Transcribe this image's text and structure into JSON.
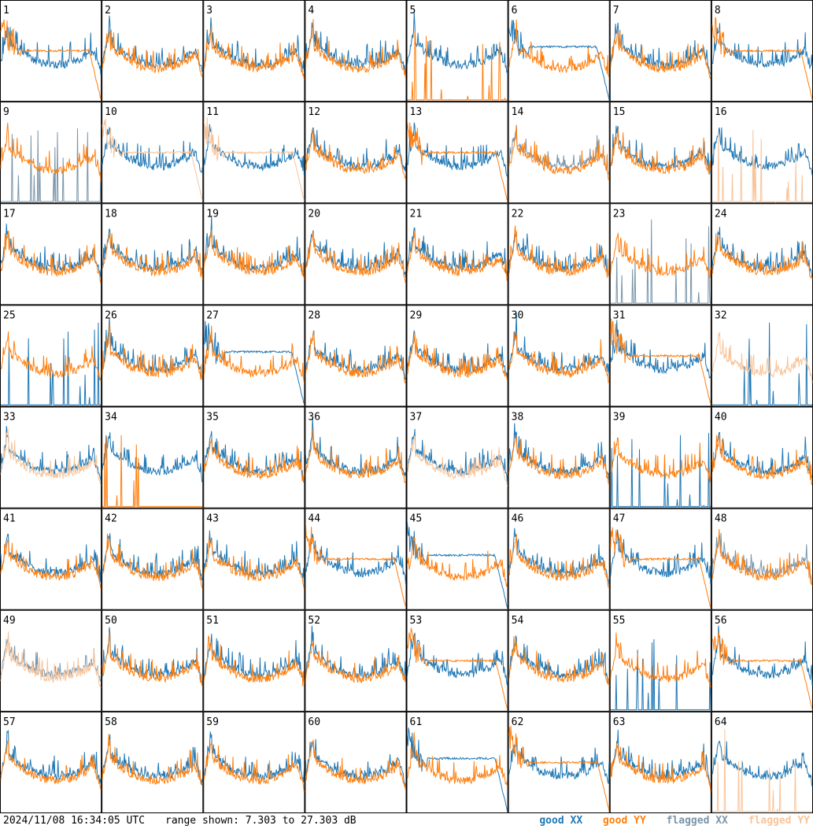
{
  "footer": {
    "timestamp": "2024/11/08 16:34:05 UTC",
    "range_text": "range shown: 7.303 to 27.303 dB"
  },
  "legend": [
    {
      "label": "good XX",
      "color": "#1f77b4"
    },
    {
      "label": "good YY",
      "color": "#ff7f0e"
    },
    {
      "label": "flagged XX",
      "color": "#7a95aa"
    },
    {
      "label": "flagged YY",
      "color": "#f8c49a"
    }
  ],
  "colors": {
    "good_xx": "#1f77b4",
    "good_yy": "#ff7f0e",
    "flagged_xx": "#7a95aa",
    "flagged_yy": "#f8c49a"
  },
  "chart_data": {
    "type": "line",
    "layout": "small-multiples 8x8",
    "ylim": [
      7.303,
      27.303
    ],
    "y_unit": "dB",
    "series_names": [
      "good XX",
      "good YY",
      "flagged XX",
      "flagged YY"
    ],
    "panels": [
      {
        "id": "1",
        "xx": "good",
        "yy": "good",
        "xx_shape": "bandpass",
        "yy_shape": "rolloff"
      },
      {
        "id": "2",
        "xx": "good",
        "yy": "good",
        "xx_shape": "bandpass",
        "yy_shape": "bandpass"
      },
      {
        "id": "3",
        "xx": "good",
        "yy": "good",
        "xx_shape": "bandpass",
        "yy_shape": "bandpass"
      },
      {
        "id": "4",
        "xx": "good",
        "yy": "good",
        "xx_shape": "bandpass",
        "yy_shape": "bandpass"
      },
      {
        "id": "5",
        "xx": "good",
        "yy": "good",
        "xx_shape": "bandpass",
        "yy_shape": "spikes"
      },
      {
        "id": "6",
        "xx": "good",
        "yy": "good",
        "xx_shape": "rolloff",
        "yy_shape": "bandpass"
      },
      {
        "id": "7",
        "xx": "good",
        "yy": "good",
        "xx_shape": "bandpass",
        "yy_shape": "bandpass"
      },
      {
        "id": "8",
        "xx": "good",
        "yy": "good",
        "xx_shape": "bandpass",
        "yy_shape": "rolloff"
      },
      {
        "id": "9",
        "xx": "flagged",
        "yy": "good",
        "xx_shape": "spikes",
        "yy_shape": "bandpass"
      },
      {
        "id": "10",
        "xx": "good",
        "yy": "flagged",
        "xx_shape": "bandpass",
        "yy_shape": "rolloff"
      },
      {
        "id": "11",
        "xx": "good",
        "yy": "flagged",
        "xx_shape": "bandpass",
        "yy_shape": "rolloff"
      },
      {
        "id": "12",
        "xx": "good",
        "yy": "good",
        "xx_shape": "bandpass",
        "yy_shape": "bandpass"
      },
      {
        "id": "13",
        "xx": "good",
        "yy": "good",
        "xx_shape": "bandpass",
        "yy_shape": "rolloff"
      },
      {
        "id": "14",
        "xx": "flagged",
        "yy": "good",
        "xx_shape": "bandpass",
        "yy_shape": "bandpass"
      },
      {
        "id": "15",
        "xx": "good",
        "yy": "good",
        "xx_shape": "bandpass",
        "yy_shape": "bandpass"
      },
      {
        "id": "16",
        "xx": "good",
        "yy": "flagged",
        "xx_shape": "bandpass",
        "yy_shape": "spikes"
      },
      {
        "id": "17",
        "xx": "good",
        "yy": "good",
        "xx_shape": "bandpass",
        "yy_shape": "bandpass"
      },
      {
        "id": "18",
        "xx": "good",
        "yy": "good",
        "xx_shape": "bandpass",
        "yy_shape": "bandpass"
      },
      {
        "id": "19",
        "xx": "good",
        "yy": "good",
        "xx_shape": "bandpass",
        "yy_shape": "bandpass"
      },
      {
        "id": "20",
        "xx": "good",
        "yy": "good",
        "xx_shape": "bandpass",
        "yy_shape": "bandpass"
      },
      {
        "id": "21",
        "xx": "good",
        "yy": "good",
        "xx_shape": "bandpass",
        "yy_shape": "bandpass"
      },
      {
        "id": "22",
        "xx": "good",
        "yy": "good",
        "xx_shape": "bandpass",
        "yy_shape": "bandpass"
      },
      {
        "id": "23",
        "xx": "flagged",
        "yy": "good",
        "xx_shape": "spikes",
        "yy_shape": "bandpass"
      },
      {
        "id": "24",
        "xx": "good",
        "yy": "good",
        "xx_shape": "bandpass",
        "yy_shape": "bandpass"
      },
      {
        "id": "25",
        "xx": "good",
        "yy": "good",
        "xx_shape": "spikes",
        "yy_shape": "bandpass"
      },
      {
        "id": "26",
        "xx": "good",
        "yy": "good",
        "xx_shape": "bandpass",
        "yy_shape": "bandpass"
      },
      {
        "id": "27",
        "xx": "good",
        "yy": "good",
        "xx_shape": "rolloff",
        "yy_shape": "bandpass"
      },
      {
        "id": "28",
        "xx": "good",
        "yy": "good",
        "xx_shape": "bandpass",
        "yy_shape": "bandpass"
      },
      {
        "id": "29",
        "xx": "good",
        "yy": "good",
        "xx_shape": "bandpass",
        "yy_shape": "bandpass"
      },
      {
        "id": "30",
        "xx": "good",
        "yy": "good",
        "xx_shape": "bandpass",
        "yy_shape": "bandpass"
      },
      {
        "id": "31",
        "xx": "good",
        "yy": "good",
        "xx_shape": "bandpass",
        "yy_shape": "rolloff"
      },
      {
        "id": "32",
        "xx": "good",
        "yy": "flagged",
        "xx_shape": "spikes",
        "yy_shape": "bandpass"
      },
      {
        "id": "33",
        "xx": "good",
        "yy": "flagged",
        "xx_shape": "bandpass",
        "yy_shape": "bandpass"
      },
      {
        "id": "34",
        "xx": "good",
        "yy": "good",
        "xx_shape": "bandpass",
        "yy_shape": "spikes"
      },
      {
        "id": "35",
        "xx": "good",
        "yy": "good",
        "xx_shape": "bandpass",
        "yy_shape": "bandpass"
      },
      {
        "id": "36",
        "xx": "good",
        "yy": "good",
        "xx_shape": "bandpass",
        "yy_shape": "bandpass"
      },
      {
        "id": "37",
        "xx": "good",
        "yy": "flagged",
        "xx_shape": "bandpass",
        "yy_shape": "bandpass"
      },
      {
        "id": "38",
        "xx": "good",
        "yy": "good",
        "xx_shape": "bandpass",
        "yy_shape": "bandpass"
      },
      {
        "id": "39",
        "xx": "good",
        "yy": "good",
        "xx_shape": "spikes",
        "yy_shape": "bandpass"
      },
      {
        "id": "40",
        "xx": "good",
        "yy": "good",
        "xx_shape": "bandpass",
        "yy_shape": "bandpass"
      },
      {
        "id": "41",
        "xx": "good",
        "yy": "good",
        "xx_shape": "bandpass",
        "yy_shape": "bandpass"
      },
      {
        "id": "42",
        "xx": "good",
        "yy": "good",
        "xx_shape": "bandpass",
        "yy_shape": "bandpass"
      },
      {
        "id": "43",
        "xx": "good",
        "yy": "good",
        "xx_shape": "bandpass",
        "yy_shape": "bandpass"
      },
      {
        "id": "44",
        "xx": "good",
        "yy": "good",
        "xx_shape": "bandpass",
        "yy_shape": "rolloff"
      },
      {
        "id": "45",
        "xx": "good",
        "yy": "good",
        "xx_shape": "rolloff",
        "yy_shape": "bandpass"
      },
      {
        "id": "46",
        "xx": "good",
        "yy": "good",
        "xx_shape": "bandpass",
        "yy_shape": "bandpass"
      },
      {
        "id": "47",
        "xx": "good",
        "yy": "good",
        "xx_shape": "bandpass",
        "yy_shape": "rolloff"
      },
      {
        "id": "48",
        "xx": "flagged",
        "yy": "good",
        "xx_shape": "bandpass",
        "yy_shape": "bandpass"
      },
      {
        "id": "49",
        "xx": "flagged",
        "yy": "flagged",
        "xx_shape": "bandpass",
        "yy_shape": "bandpass"
      },
      {
        "id": "50",
        "xx": "good",
        "yy": "good",
        "xx_shape": "bandpass",
        "yy_shape": "bandpass"
      },
      {
        "id": "51",
        "xx": "good",
        "yy": "good",
        "xx_shape": "bandpass",
        "yy_shape": "bandpass"
      },
      {
        "id": "52",
        "xx": "good",
        "yy": "good",
        "xx_shape": "bandpass",
        "yy_shape": "bandpass"
      },
      {
        "id": "53",
        "xx": "good",
        "yy": "good",
        "xx_shape": "bandpass",
        "yy_shape": "rolloff"
      },
      {
        "id": "54",
        "xx": "good",
        "yy": "good",
        "xx_shape": "bandpass",
        "yy_shape": "bandpass"
      },
      {
        "id": "55",
        "xx": "good",
        "yy": "good",
        "xx_shape": "spikes",
        "yy_shape": "bandpass"
      },
      {
        "id": "56",
        "xx": "good",
        "yy": "good",
        "xx_shape": "bandpass",
        "yy_shape": "rolloff"
      },
      {
        "id": "57",
        "xx": "good",
        "yy": "good",
        "xx_shape": "bandpass",
        "yy_shape": "bandpass"
      },
      {
        "id": "58",
        "xx": "good",
        "yy": "good",
        "xx_shape": "bandpass",
        "yy_shape": "bandpass"
      },
      {
        "id": "59",
        "xx": "good",
        "yy": "good",
        "xx_shape": "bandpass",
        "yy_shape": "bandpass"
      },
      {
        "id": "60",
        "xx": "good",
        "yy": "good",
        "xx_shape": "bandpass",
        "yy_shape": "bandpass"
      },
      {
        "id": "61",
        "xx": "good",
        "yy": "good",
        "xx_shape": "rolloff",
        "yy_shape": "bandpass"
      },
      {
        "id": "62",
        "xx": "good",
        "yy": "good",
        "xx_shape": "bandpass",
        "yy_shape": "rolloff"
      },
      {
        "id": "63",
        "xx": "good",
        "yy": "good",
        "xx_shape": "bandpass",
        "yy_shape": "bandpass"
      },
      {
        "id": "64",
        "xx": "good",
        "yy": "flagged",
        "xx_shape": "bandpass",
        "yy_shape": "spikes"
      }
    ]
  }
}
